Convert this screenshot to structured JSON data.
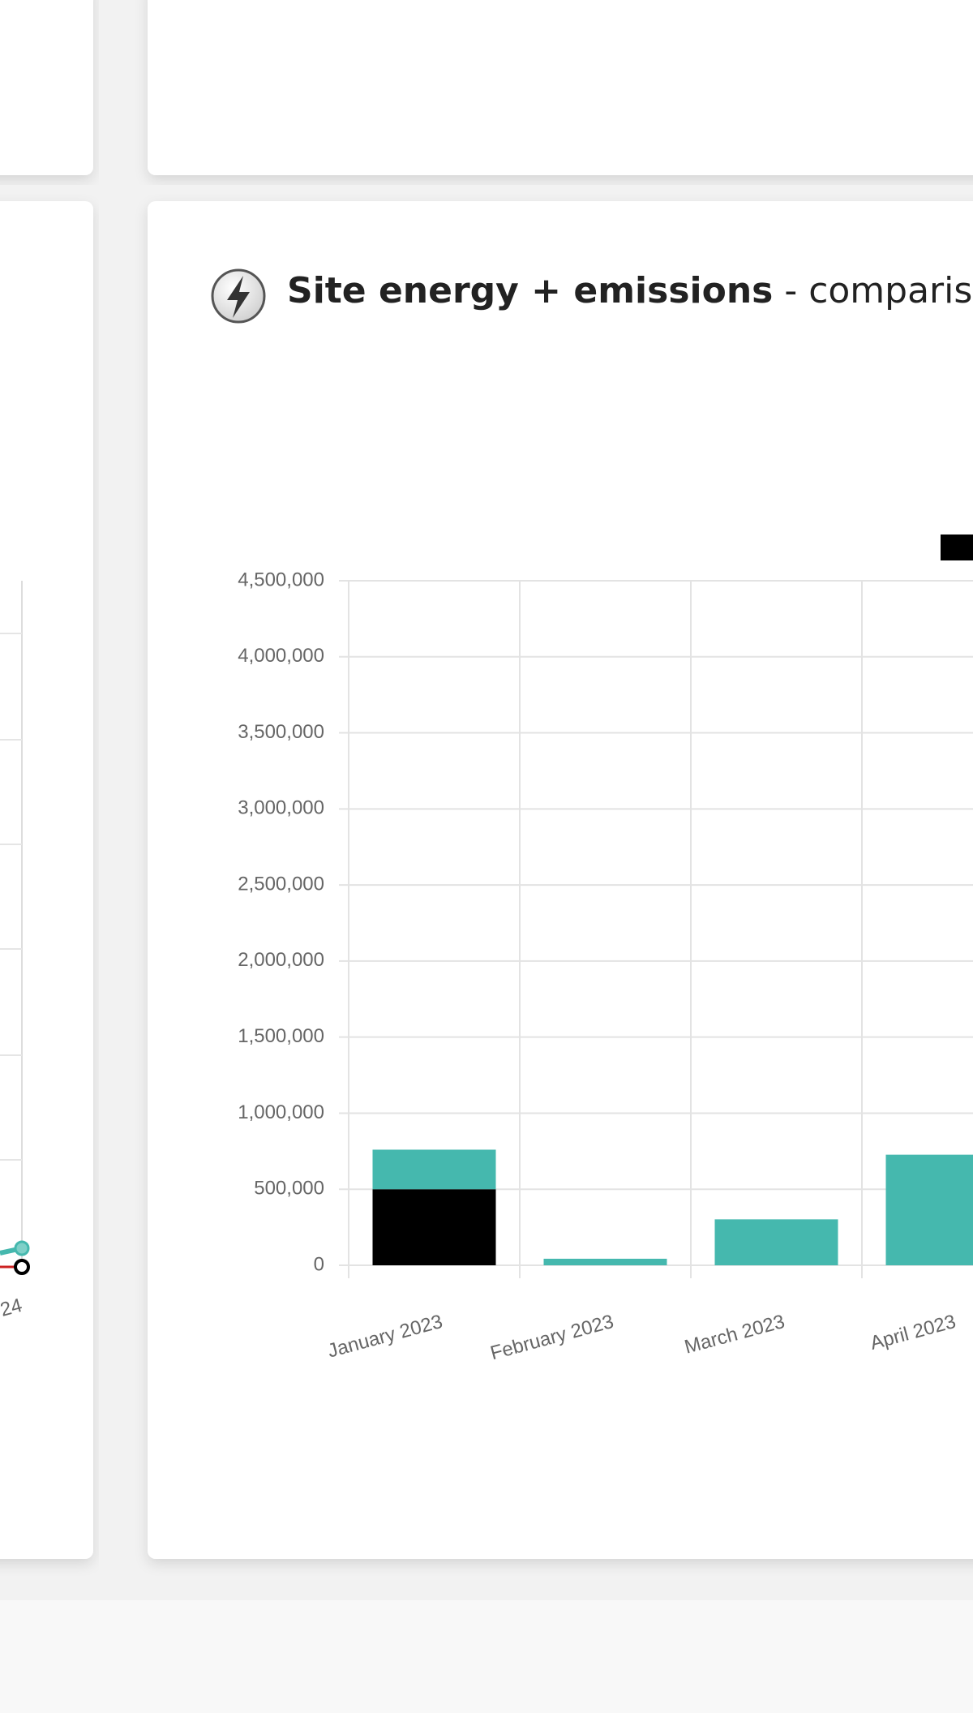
{
  "left_panel": {
    "axis_label": "24"
  },
  "chart_data": {
    "type": "bar",
    "stacked": true,
    "title": "Site energy + emissions",
    "subtitle": "- comparison",
    "categories": [
      "January 2023",
      "February 2023",
      "March 2023",
      "April 2023"
    ],
    "series": [
      {
        "color": "#000000",
        "values": [
          500000,
          0,
          0,
          0
        ]
      },
      {
        "color": "#45b8ae",
        "values": [
          260000,
          43000,
          302000,
          727000
        ]
      }
    ],
    "ylim": [
      0,
      4500000
    ],
    "yticks": [
      0,
      {
        "value": 500000,
        "label": "500,000"
      },
      {
        "value": 1000000,
        "label": "1,000,000"
      },
      {
        "value": 1500000,
        "label": "1,500,000"
      },
      {
        "value": 2000000,
        "label": "2,000,000"
      },
      {
        "value": 2500000,
        "label": "2,500,000"
      },
      {
        "value": 3000000,
        "label": "3,000,000"
      },
      {
        "value": 3500000,
        "label": "3,500,000"
      },
      {
        "value": 4000000,
        "label": "4,000,000"
      },
      {
        "value": 4500000,
        "label": "4,500,000"
      }
    ],
    "grid": true
  }
}
